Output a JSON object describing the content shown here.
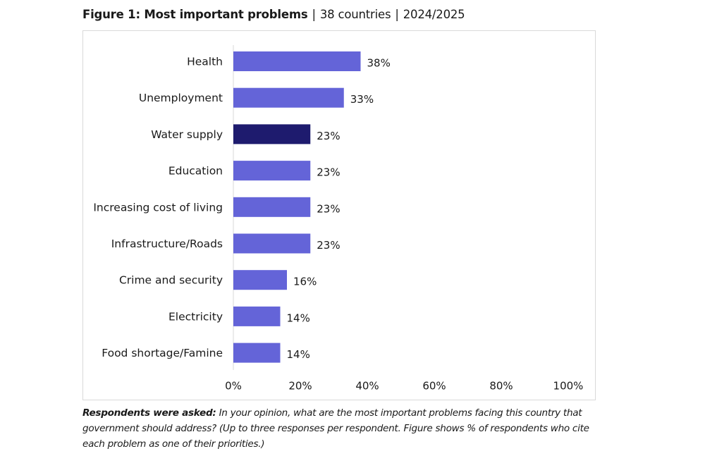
{
  "header": {
    "figure_label": "Figure 1: Most important problems",
    "scope": "38 countries",
    "period": "2024/2025",
    "separator": "|"
  },
  "footnote": {
    "lead": "Respondents were asked:",
    "text": " In your opinion, what are the most important problems facing this country that government should address? (Up to three responses per respondent. Figure shows % of respondents who cite each problem as one of their priorities.)"
  },
  "colors": {
    "bar": "#6464d8",
    "highlight": "#1e1b6e",
    "axis": "#d9d9d9"
  },
  "chart_data": {
    "type": "bar",
    "orientation": "horizontal",
    "title": "Figure 1: Most important problems | 38 countries | 2024/2025",
    "xlabel": "",
    "ylabel": "",
    "xlim": [
      0,
      100
    ],
    "x_ticks": [
      "0%",
      "20%",
      "40%",
      "60%",
      "80%",
      "100%"
    ],
    "x_tick_values": [
      0,
      20,
      40,
      60,
      80,
      100
    ],
    "grid": false,
    "legend": "none",
    "categories": [
      "Health",
      "Unemployment",
      "Water supply",
      "Education",
      "Increasing cost of living",
      "Infrastructure/Roads",
      "Crime and security",
      "Electricity",
      "Food shortage/Famine"
    ],
    "values": [
      38,
      33,
      23,
      23,
      23,
      23,
      16,
      14,
      14
    ],
    "data_labels": [
      "38%",
      "33%",
      "23%",
      "23%",
      "23%",
      "23%",
      "16%",
      "14%",
      "14%"
    ],
    "highlighted": [
      "Water supply"
    ]
  }
}
